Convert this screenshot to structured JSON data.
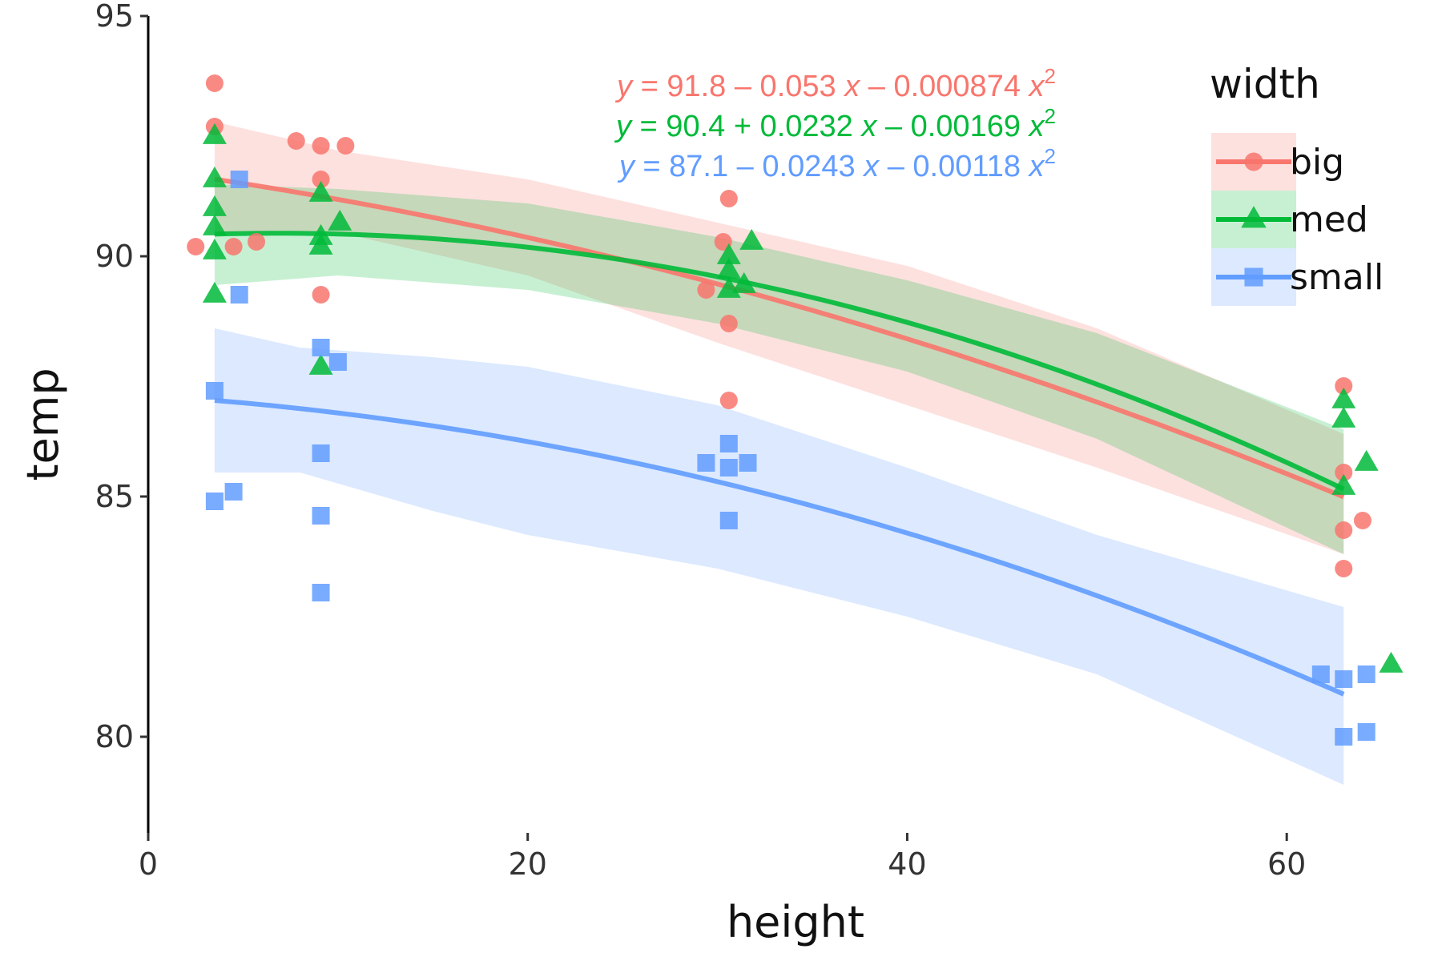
{
  "chart_data": {
    "type": "scatter",
    "xlabel": "height",
    "ylabel": "temp",
    "xlim": [
      0,
      67
    ],
    "ylim": [
      78,
      95
    ],
    "xticks": [
      0,
      20,
      40,
      60
    ],
    "yticks": [
      80,
      85,
      90,
      95
    ],
    "grid": false,
    "legend": {
      "title": "width",
      "position": "right"
    },
    "series": [
      {
        "name": "big",
        "color": "#F8766D",
        "marker": "circle",
        "equation": {
          "prefix": "y",
          "text": " = 91.8 – 0.053 ",
          "xterm": "x",
          "mid": " – 0.000874 ",
          "x2term": "x",
          "sup": "2"
        },
        "coef": [
          91.8,
          -0.053,
          -0.000874
        ],
        "band": {
          "x": [
            3.5,
            10,
            20,
            30,
            40,
            50,
            63
          ],
          "lower": [
            90.5,
            90.5,
            89.6,
            88.2,
            86.9,
            85.6,
            83.8
          ],
          "upper": [
            92.8,
            92.2,
            91.6,
            90.7,
            89.8,
            88.5,
            86.3
          ]
        },
        "points": [
          {
            "x": 2.5,
            "y": 90.2
          },
          {
            "x": 3.5,
            "y": 93.6
          },
          {
            "x": 3.5,
            "y": 92.7
          },
          {
            "x": 4.5,
            "y": 90.2
          },
          {
            "x": 5.7,
            "y": 90.3
          },
          {
            "x": 7.8,
            "y": 92.4
          },
          {
            "x": 9.1,
            "y": 92.3
          },
          {
            "x": 9.1,
            "y": 91.6
          },
          {
            "x": 10.4,
            "y": 92.3
          },
          {
            "x": 9.1,
            "y": 89.2
          },
          {
            "x": 30.6,
            "y": 91.2
          },
          {
            "x": 30.3,
            "y": 90.3
          },
          {
            "x": 29.4,
            "y": 89.3
          },
          {
            "x": 30.6,
            "y": 88.6
          },
          {
            "x": 30.6,
            "y": 87.0
          },
          {
            "x": 63.0,
            "y": 87.3
          },
          {
            "x": 63.0,
            "y": 85.5
          },
          {
            "x": 63.0,
            "y": 84.3
          },
          {
            "x": 64.0,
            "y": 84.5
          },
          {
            "x": 63.0,
            "y": 83.5
          }
        ]
      },
      {
        "name": "med",
        "color": "#00BA38",
        "marker": "triangle",
        "equation": {
          "prefix": "y",
          "text": " = 90.4 + 0.0232 ",
          "xterm": "x",
          "mid": " – 0.00169 ",
          "x2term": "x",
          "sup": "2"
        },
        "coef": [
          90.4,
          0.0232,
          -0.00169
        ],
        "band": {
          "x": [
            3.5,
            10,
            20,
            30,
            40,
            50,
            63
          ],
          "lower": [
            89.4,
            89.6,
            89.3,
            88.6,
            87.6,
            86.2,
            83.8
          ],
          "upper": [
            91.5,
            91.4,
            91.1,
            90.4,
            89.5,
            88.4,
            86.4
          ]
        },
        "points": [
          {
            "x": 3.5,
            "y": 92.5
          },
          {
            "x": 3.5,
            "y": 91.6
          },
          {
            "x": 3.5,
            "y": 91.0
          },
          {
            "x": 3.5,
            "y": 90.6
          },
          {
            "x": 3.5,
            "y": 90.1
          },
          {
            "x": 3.5,
            "y": 89.2
          },
          {
            "x": 9.1,
            "y": 91.3
          },
          {
            "x": 9.1,
            "y": 90.4
          },
          {
            "x": 9.1,
            "y": 90.2
          },
          {
            "x": 10.1,
            "y": 90.7
          },
          {
            "x": 9.1,
            "y": 87.7
          },
          {
            "x": 30.6,
            "y": 90.0
          },
          {
            "x": 30.6,
            "y": 89.7
          },
          {
            "x": 30.6,
            "y": 89.3
          },
          {
            "x": 31.8,
            "y": 90.3
          },
          {
            "x": 31.4,
            "y": 89.4
          },
          {
            "x": 63.0,
            "y": 87.0
          },
          {
            "x": 63.0,
            "y": 86.6
          },
          {
            "x": 63.0,
            "y": 85.2
          },
          {
            "x": 64.2,
            "y": 85.7
          },
          {
            "x": 65.5,
            "y": 81.5
          }
        ]
      },
      {
        "name": "small",
        "color": "#619CFF",
        "marker": "square",
        "equation": {
          "prefix": "y",
          "text": " = 87.1 – 0.0243 ",
          "xterm": "x",
          "mid": " – 0.00118 ",
          "x2term": "x",
          "sup": "2"
        },
        "coef": [
          87.1,
          -0.0243,
          -0.00118
        ],
        "band": {
          "x": [
            3.5,
            8,
            15,
            20,
            30,
            40,
            50,
            63
          ],
          "lower": [
            85.5,
            85.5,
            84.7,
            84.2,
            83.5,
            82.5,
            81.3,
            79.0
          ],
          "upper": [
            88.5,
            88.1,
            87.9,
            87.7,
            86.9,
            85.6,
            84.2,
            82.7
          ]
        },
        "points": [
          {
            "x": 4.8,
            "y": 91.6
          },
          {
            "x": 4.8,
            "y": 89.2
          },
          {
            "x": 3.5,
            "y": 87.2
          },
          {
            "x": 3.5,
            "y": 84.9
          },
          {
            "x": 4.5,
            "y": 85.1
          },
          {
            "x": 9.1,
            "y": 88.1
          },
          {
            "x": 10.0,
            "y": 87.8
          },
          {
            "x": 9.1,
            "y": 85.9
          },
          {
            "x": 9.1,
            "y": 84.6
          },
          {
            "x": 9.1,
            "y": 83.0
          },
          {
            "x": 29.4,
            "y": 85.7
          },
          {
            "x": 30.6,
            "y": 86.1
          },
          {
            "x": 30.6,
            "y": 85.6
          },
          {
            "x": 31.6,
            "y": 85.7
          },
          {
            "x": 30.6,
            "y": 84.5
          },
          {
            "x": 61.8,
            "y": 81.3
          },
          {
            "x": 63.0,
            "y": 81.2
          },
          {
            "x": 64.2,
            "y": 81.3
          },
          {
            "x": 63.0,
            "y": 80.0
          },
          {
            "x": 64.2,
            "y": 80.1
          }
        ]
      }
    ]
  }
}
